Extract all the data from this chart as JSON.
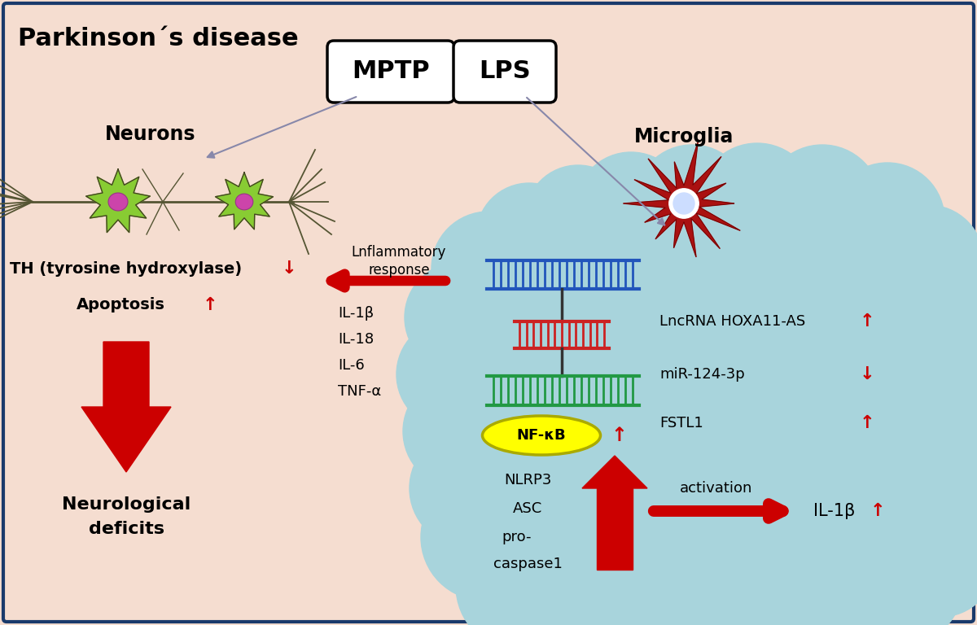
{
  "bg_color": "#f5ddd0",
  "border_color": "#1a3a6b",
  "cloud_color": "#a8d4dc",
  "title": "Parkinson´s disease",
  "title_fontsize": 22,
  "mptp_label": "MPTP",
  "lps_label": "LPS",
  "neurons_label": "Neurons",
  "microglia_label": "Microglia",
  "th_label": "TH (tyrosine hydroxylase)",
  "apoptosis_label": "Apoptosis",
  "neuro_label1": "Neurological",
  "neuro_label2": "deficits",
  "inflammatory_label1": "Lnflammatory",
  "inflammatory_label2": "response",
  "cytokines": [
    "IL-1β",
    "IL-18",
    "IL-6",
    "TNF-α"
  ],
  "right_labels": [
    "LncRNA HOXA11-AS",
    "miR-124-3p",
    "FSTL1"
  ],
  "right_arrows": [
    "↑",
    "↓",
    "↑"
  ],
  "nlrp3_labels": [
    "NLRP3",
    "ASC",
    "pro-",
    "caspase1"
  ],
  "nfkb_label": "NF-κB",
  "activation_label": "activation",
  "il1b_label": "IL-1β",
  "red_color": "#cc0000",
  "yellow_color": "#ffff00",
  "green_color": "#77cc44",
  "pink_color": "#cc44aa",
  "dark_red": "#880000",
  "neuron_body_color": "#88cc33",
  "neuron_nucleus_color": "#cc44aa",
  "axon_color": "#555533"
}
